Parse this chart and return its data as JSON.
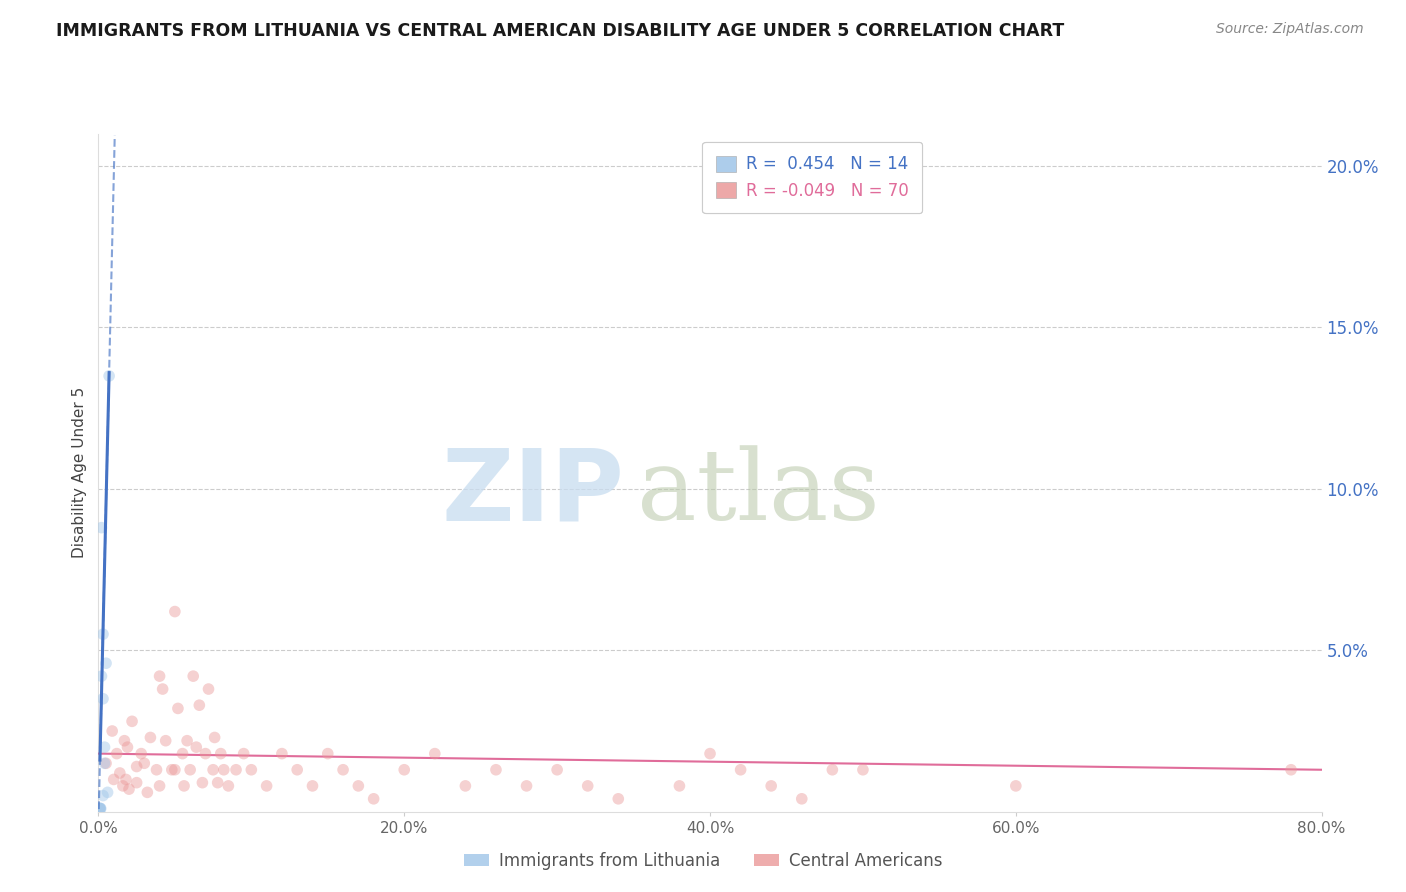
{
  "title": "IMMIGRANTS FROM LITHUANIA VS CENTRAL AMERICAN DISABILITY AGE UNDER 5 CORRELATION CHART",
  "source": "Source: ZipAtlas.com",
  "ylabel": "Disability Age Under 5",
  "legend_blue_r": "0.454",
  "legend_blue_n": "14",
  "legend_pink_r": "-0.049",
  "legend_pink_n": "70",
  "legend_blue_label": "Immigrants from Lithuania",
  "legend_pink_label": "Central Americans",
  "xlim": [
    0.0,
    0.8
  ],
  "ylim": [
    0.0,
    0.21
  ],
  "xticks": [
    0.0,
    0.2,
    0.4,
    0.6,
    0.8
  ],
  "yticks_right": [
    0.05,
    0.1,
    0.15,
    0.2
  ],
  "ytick_right_labels": [
    "5.0%",
    "10.0%",
    "15.0%",
    "20.0%"
  ],
  "xtick_labels": [
    "0.0%",
    "20.0%",
    "40.0%",
    "60.0%",
    "80.0%"
  ],
  "blue_scatter_x": [
    0.0008,
    0.001,
    0.0012,
    0.0015,
    0.002,
    0.002,
    0.003,
    0.003,
    0.003,
    0.004,
    0.004,
    0.005,
    0.006,
    0.007
  ],
  "blue_scatter_y": [
    0.001,
    0.001,
    0.001,
    0.001,
    0.088,
    0.042,
    0.055,
    0.035,
    0.005,
    0.02,
    0.015,
    0.046,
    0.006,
    0.135
  ],
  "blue_color": "#9fc5e8",
  "pink_scatter_x": [
    0.005,
    0.009,
    0.01,
    0.012,
    0.014,
    0.016,
    0.017,
    0.018,
    0.019,
    0.02,
    0.022,
    0.025,
    0.025,
    0.028,
    0.03,
    0.032,
    0.034,
    0.038,
    0.04,
    0.04,
    0.042,
    0.044,
    0.048,
    0.05,
    0.05,
    0.052,
    0.055,
    0.056,
    0.058,
    0.06,
    0.062,
    0.064,
    0.066,
    0.068,
    0.07,
    0.072,
    0.075,
    0.076,
    0.078,
    0.08,
    0.082,
    0.085,
    0.09,
    0.095,
    0.1,
    0.11,
    0.12,
    0.13,
    0.14,
    0.15,
    0.16,
    0.17,
    0.18,
    0.2,
    0.22,
    0.24,
    0.26,
    0.28,
    0.3,
    0.32,
    0.34,
    0.38,
    0.4,
    0.42,
    0.44,
    0.46,
    0.48,
    0.5,
    0.6,
    0.78
  ],
  "pink_scatter_y": [
    0.015,
    0.025,
    0.01,
    0.018,
    0.012,
    0.008,
    0.022,
    0.01,
    0.02,
    0.007,
    0.028,
    0.014,
    0.009,
    0.018,
    0.015,
    0.006,
    0.023,
    0.013,
    0.042,
    0.008,
    0.038,
    0.022,
    0.013,
    0.062,
    0.013,
    0.032,
    0.018,
    0.008,
    0.022,
    0.013,
    0.042,
    0.02,
    0.033,
    0.009,
    0.018,
    0.038,
    0.013,
    0.023,
    0.009,
    0.018,
    0.013,
    0.008,
    0.013,
    0.018,
    0.013,
    0.008,
    0.018,
    0.013,
    0.008,
    0.018,
    0.013,
    0.008,
    0.004,
    0.013,
    0.018,
    0.008,
    0.013,
    0.008,
    0.013,
    0.008,
    0.004,
    0.008,
    0.018,
    0.013,
    0.008,
    0.004,
    0.013,
    0.013,
    0.008,
    0.013
  ],
  "pink_color": "#ea9999",
  "blue_trend_color": "#4472c4",
  "pink_trend_color": "#e06c9a",
  "title_color": "#1a1a1a",
  "source_color": "#888888",
  "axis_color": "#4472c4",
  "grid_color": "#cccccc",
  "background_color": "#ffffff",
  "marker_size": 70,
  "marker_alpha": 0.45
}
